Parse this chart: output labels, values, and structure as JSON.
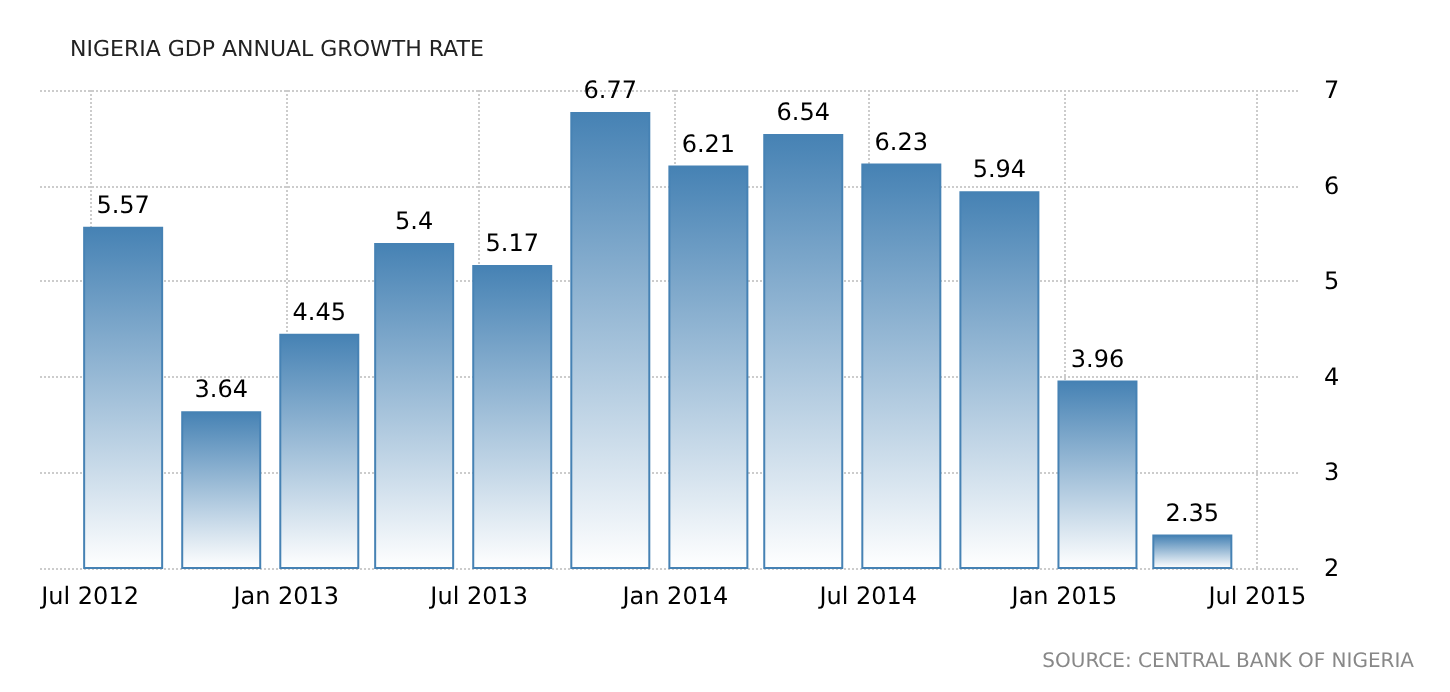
{
  "chart_data": {
    "type": "bar",
    "title": "NIGERIA GDP ANNUAL GROWTH RATE",
    "x": [
      "2012-08",
      "2012-11",
      "2013-02",
      "2013-05",
      "2013-08",
      "2013-11",
      "2014-02",
      "2014-05",
      "2014-08",
      "2014-11",
      "2015-02",
      "2015-05"
    ],
    "values": [
      5.57,
      3.64,
      4.45,
      5.4,
      5.17,
      6.77,
      6.21,
      6.54,
      6.23,
      5.94,
      3.96,
      2.35
    ],
    "color": "#4682b4",
    "xlim": [
      "2012-05-15",
      "2015-08-10"
    ],
    "xticks": [
      {
        "value": "2012-07",
        "label": "Jul 2012"
      },
      {
        "value": "2013-01",
        "label": "Jan 2013"
      },
      {
        "value": "2013-07",
        "label": "Jul 2013"
      },
      {
        "value": "2014-01",
        "label": "Jan 2014"
      },
      {
        "value": "2014-07",
        "label": "Jul 2014"
      },
      {
        "value": "2015-01",
        "label": "Jan 2015"
      },
      {
        "value": "2015-07",
        "label": "Jul 2015"
      }
    ],
    "ylim": [
      2,
      7
    ],
    "yticks": [
      2,
      3,
      4,
      5,
      6,
      7
    ],
    "grid": true,
    "data_labels": true,
    "annotations": [
      "SOURCE: CENTRAL BANK OF NIGERIA"
    ]
  }
}
